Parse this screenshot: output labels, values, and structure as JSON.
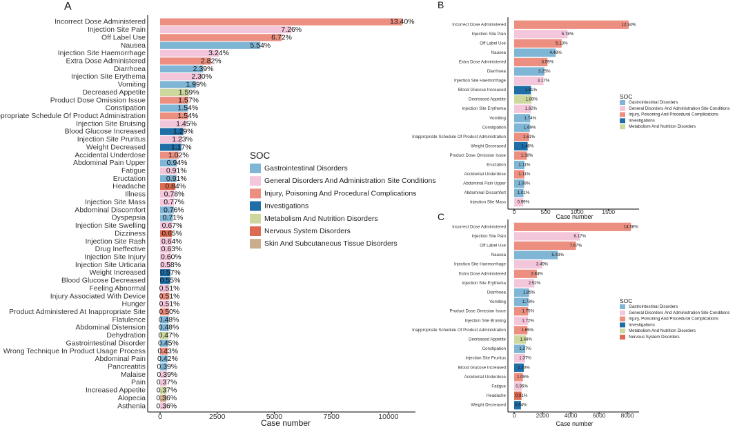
{
  "colors": {
    "Gastrointestinal Disorders": "#7fb5d5",
    "General Disorders And Administration Site Conditions": "#f4c6db",
    "Injury, Poisoning And Procedural Complications": "#ec8f80",
    "Investigations": "#1f6ea6",
    "Metabolism And Nutrition Disorders": "#cdd89f",
    "Nervous System Disorders": "#dd6a52",
    "Skin And Subcutaneous Tissue Disorders": "#c9ad8c"
  },
  "chart_data": [
    {
      "panel": "A",
      "type": "bar",
      "orientation": "horizontal",
      "xlabel": "Case number",
      "xlim": [
        0,
        11000
      ],
      "xticks": [
        0,
        2500,
        5000,
        7500,
        10000
      ],
      "legend_title": "SOC",
      "legend": [
        "Gastrointestinal Disorders",
        "General Disorders And Administration Site Conditions",
        "Injury, Poisoning And Procedural Complications",
        "Investigations",
        "Metabolism And Nutrition Disorders",
        "Nervous System Disorders",
        "Skin And Subcutaneous Tissue Disorders"
      ],
      "categories": [
        "Incorrect Dose Administered",
        "Injection Site Pain",
        "Off Label Use",
        "Nausea",
        "Injection Site Haemorrhage",
        "Extra Dose Administered",
        "Diarrhoea",
        "Injection Site Erythema",
        "Vomiting",
        "Decreased Appetite",
        "Product Dose Omission Issue",
        "Constipation",
        "Inappropriate Schedule Of Product Administration",
        "Injection Site Bruising",
        "Blood Glucose Increased",
        "Injection Site Pruritus",
        "Weight Decreased",
        "Accidental Underdose",
        "Abdominal Pain Upper",
        "Fatigue",
        "Eructation",
        "Headache",
        "Illness",
        "Injection Site Mass",
        "Abdominal Discomfort",
        "Dyspepsia",
        "Injection Site Swelling",
        "Dizziness",
        "Injection Site Rash",
        "Drug Ineffective",
        "Injection Site Injury",
        "Injection Site Urticaria",
        "Weight Increased",
        "Blood Glucose Decreased",
        "Feeling Abnormal",
        "Injury Associated With Device",
        "Hunger",
        "Product Administered At Inappropriate Site",
        "Flatulence",
        "Abdominal Distension",
        "Dehydration",
        "Gastrointestinal Disorder",
        "Wrong Technique In Product Usage Process",
        "Abdominal Pain",
        "Pancreatitis",
        "Malaise",
        "Pain",
        "Increased Appetite",
        "Alopecia",
        "Asthenia"
      ],
      "values": [
        10600,
        5750,
        5320,
        4390,
        2570,
        2230,
        1890,
        1820,
        1580,
        1260,
        1240,
        1220,
        1220,
        1150,
        1020,
        970,
        930,
        810,
        740,
        720,
        720,
        670,
        620,
        610,
        600,
        560,
        530,
        520,
        510,
        500,
        480,
        460,
        450,
        440,
        410,
        410,
        410,
        400,
        380,
        380,
        370,
        360,
        340,
        330,
        310,
        310,
        290,
        290,
        280,
        280
      ],
      "labels": [
        "13.40%",
        "7.26%",
        "6.72%",
        "5.54%",
        "3.24%",
        "2.82%",
        "2.39%",
        "2.30%",
        "1.99%",
        "1.59%",
        "1.57%",
        "1.54%",
        "1.54%",
        "1.45%",
        "1.29%",
        "1.23%",
        "1.17%",
        "1.02%",
        "0.94%",
        "0.91%",
        "0.91%",
        "0.84%",
        "0.78%",
        "0.77%",
        "0.76%",
        "0.71%",
        "0.67%",
        "0.65%",
        "0.64%",
        "0.63%",
        "0.60%",
        "0.58%",
        "0.57%",
        "0.55%",
        "0.51%",
        "0.51%",
        "0.51%",
        "0.50%",
        "0.48%",
        "0.48%",
        "0.47%",
        "0.45%",
        "0.43%",
        "0.42%",
        "0.39%",
        "0.39%",
        "0.37%",
        "0.37%",
        "0.36%",
        "0.36%"
      ],
      "soc": [
        "Injury, Poisoning And Procedural Complications",
        "General Disorders And Administration Site Conditions",
        "Injury, Poisoning And Procedural Complications",
        "Gastrointestinal Disorders",
        "General Disorders And Administration Site Conditions",
        "Injury, Poisoning And Procedural Complications",
        "Gastrointestinal Disorders",
        "General Disorders And Administration Site Conditions",
        "Gastrointestinal Disorders",
        "Metabolism And Nutrition Disorders",
        "Injury, Poisoning And Procedural Complications",
        "Gastrointestinal Disorders",
        "Injury, Poisoning And Procedural Complications",
        "General Disorders And Administration Site Conditions",
        "Investigations",
        "General Disorders And Administration Site Conditions",
        "Investigations",
        "Injury, Poisoning And Procedural Complications",
        "Gastrointestinal Disorders",
        "General Disorders And Administration Site Conditions",
        "Gastrointestinal Disorders",
        "Nervous System Disorders",
        "General Disorders And Administration Site Conditions",
        "General Disorders And Administration Site Conditions",
        "Gastrointestinal Disorders",
        "Gastrointestinal Disorders",
        "General Disorders And Administration Site Conditions",
        "Nervous System Disorders",
        "General Disorders And Administration Site Conditions",
        "General Disorders And Administration Site Conditions",
        "General Disorders And Administration Site Conditions",
        "General Disorders And Administration Site Conditions",
        "Investigations",
        "Investigations",
        "General Disorders And Administration Site Conditions",
        "Injury, Poisoning And Procedural Complications",
        "General Disorders And Administration Site Conditions",
        "Injury, Poisoning And Procedural Complications",
        "Gastrointestinal Disorders",
        "Gastrointestinal Disorders",
        "Metabolism And Nutrition Disorders",
        "Gastrointestinal Disorders",
        "Injury, Poisoning And Procedural Complications",
        "Gastrointestinal Disorders",
        "Gastrointestinal Disorders",
        "General Disorders And Administration Site Conditions",
        "General Disorders And Administration Site Conditions",
        "Metabolism And Nutrition Disorders",
        "Skin And Subcutaneous Tissue Disorders",
        "General Disorders And Administration Site Conditions"
      ]
    },
    {
      "panel": "B",
      "type": "bar",
      "orientation": "horizontal",
      "xlabel": "Case number",
      "xlim": [
        0,
        1920
      ],
      "xticks": [
        0,
        500,
        1000,
        1500
      ],
      "legend_title": "SOC",
      "legend": [
        "Gastrointestinal Disorders",
        "General Disorders And Administration Site Conditions",
        "Injury, Poisoning And Procedural Complications",
        "Investigations",
        "Metabolism And Nutrition Disorders"
      ],
      "categories": [
        "Incorrect Dose Administered",
        "Injection Site Pain",
        "Off Label Use",
        "Nausea",
        "Extra Dose Administered",
        "Diarrhoea",
        "Injection Site Haemorrhage",
        "Blood Glucose Increased",
        "Decreased Appetite",
        "Injection Site Erythema",
        "Vomiting",
        "Constipation",
        "Inappropriate Schedule Of Product Administration",
        "Weight Decreased",
        "Product Dose Omission Issue",
        "Eructation",
        "Accidental Underdose",
        "Abdominal Pain Upper",
        "Abdominal Discomfort",
        "Injection Site Mass"
      ],
      "values": [
        1820,
        850,
        755,
        660,
        530,
        480,
        467,
        267,
        277,
        268,
        256,
        249,
        237,
        215,
        203,
        163,
        163,
        160,
        149,
        146
      ],
      "labels": [
        "12.34%",
        "5.78%",
        "5.13%",
        "4.48%",
        "3.59%",
        "3.25%",
        "3.17%",
        "1.81%",
        "1.88%",
        "1.82%",
        "1.74%",
        "1.69%",
        "1.61%",
        "1.46%",
        "1.38%",
        "1.11%",
        "1.11%",
        "1.09%",
        "1.01%",
        "0.99%"
      ],
      "soc": [
        "Injury, Poisoning And Procedural Complications",
        "General Disorders And Administration Site Conditions",
        "Injury, Poisoning And Procedural Complications",
        "Gastrointestinal Disorders",
        "Injury, Poisoning And Procedural Complications",
        "Gastrointestinal Disorders",
        "General Disorders And Administration Site Conditions",
        "Investigations",
        "Metabolism And Nutrition Disorders",
        "General Disorders And Administration Site Conditions",
        "Gastrointestinal Disorders",
        "Gastrointestinal Disorders",
        "Injury, Poisoning And Procedural Complications",
        "Investigations",
        "Injury, Poisoning And Procedural Complications",
        "Gastrointestinal Disorders",
        "Injury, Poisoning And Procedural Complications",
        "Gastrointestinal Disorders",
        "Gastrointestinal Disorders",
        "General Disorders And Administration Site Conditions"
      ]
    },
    {
      "panel": "C",
      "type": "bar",
      "orientation": "horizontal",
      "xlabel": "Case number",
      "xlim": [
        0,
        8530
      ],
      "xticks": [
        0,
        2000,
        4000,
        6000,
        8000
      ],
      "legend_title": "SOC",
      "legend": [
        "Gastrointestinal Disorders",
        "General Disorders And Administration Site Conditions",
        "Injury, Poisoning And Procedural Complications",
        "Investigations",
        "Metabolism And Nutrition Disorders",
        "Nervous System Disorders"
      ],
      "categories": [
        "Incorrect Dose Administered",
        "Injection Site Pain",
        "Off Label Use",
        "Nausea",
        "Injection Site Haemorrhage",
        "Extra Dose Administered",
        "Injection Site Erythema",
        "Diarrhoea",
        "Vomiting",
        "Product Dose Omission Issue",
        "Injection Site Bruising",
        "Inappropriate Schedule Of Product Administration",
        "Decreased Appetite",
        "Constipation",
        "Injection Site Pruritus",
        "Blood Glucose Increased",
        "Accidental Underdose",
        "Fatigue",
        "Headache",
        "Weight Decreased"
      ],
      "values": [
        8250,
        4640,
        4360,
        3080,
        1980,
        1610,
        1430,
        1050,
        1010,
        990,
        980,
        940,
        840,
        780,
        780,
        680,
        620,
        540,
        520,
        480
      ],
      "labels": [
        "14.56%",
        "8.17%",
        "7.67%",
        "5.43%",
        "3.49%",
        "2.84%",
        "2.52%",
        "1.85%",
        "1.78%",
        "1.75%",
        "1.72%",
        "1.65%",
        "1.48%",
        "1.37%",
        "1.37%",
        "1.20%",
        "1.09%",
        "0.95%",
        "0.91%",
        "0.84%"
      ],
      "soc": [
        "Injury, Poisoning And Procedural Complications",
        "General Disorders And Administration Site Conditions",
        "Injury, Poisoning And Procedural Complications",
        "Gastrointestinal Disorders",
        "General Disorders And Administration Site Conditions",
        "Injury, Poisoning And Procedural Complications",
        "General Disorders And Administration Site Conditions",
        "Gastrointestinal Disorders",
        "Gastrointestinal Disorders",
        "Injury, Poisoning And Procedural Complications",
        "General Disorders And Administration Site Conditions",
        "Injury, Poisoning And Procedural Complications",
        "Metabolism And Nutrition Disorders",
        "Gastrointestinal Disorders",
        "General Disorders And Administration Site Conditions",
        "Investigations",
        "Injury, Poisoning And Procedural Complications",
        "General Disorders And Administration Site Conditions",
        "Nervous System Disorders",
        "Investigations"
      ]
    }
  ]
}
